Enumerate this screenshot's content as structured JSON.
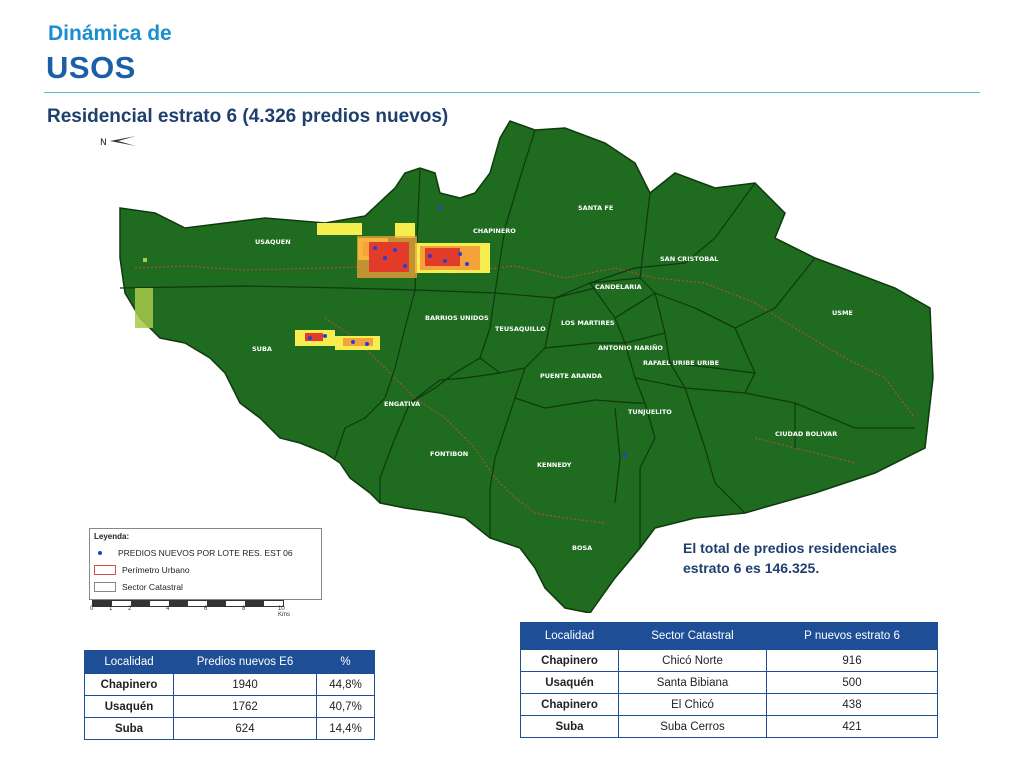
{
  "header": {
    "title_small": "Dinámica de",
    "title_big": "USOS",
    "subtitle": "Residencial estrato 6 (4.326 predios nuevos)"
  },
  "map": {
    "localities": [
      "USAQUEN",
      "CHAPINERO",
      "SANTA FE",
      "SAN CRISTOBAL",
      "CANDELARIA",
      "USME",
      "SUBA",
      "BARRIOS UNIDOS",
      "TEUSAQUILLO",
      "LOS MARTIRES",
      "ANTONIO NARIÑO",
      "RAFAEL URIBE URIBE",
      "PUENTE ARANDA",
      "ENGATIVA",
      "TUNJUELITO",
      "CIUDAD BOLIVAR",
      "FONTIBON",
      "KENNEDY",
      "BOSA"
    ],
    "north_label": "N"
  },
  "legend": {
    "title": "Leyenda:",
    "items": [
      "PREDIOS NUEVOS POR LOTE RES. EST 06",
      "Perímetro Urbano",
      "Sector Catastral"
    ],
    "scale_ticks": [
      "0",
      "1",
      "2",
      "4",
      "6",
      "8",
      "10"
    ],
    "scale_unit": "Kms"
  },
  "note": "El total de predios residenciales estrato 6 es 146.325.",
  "table_localidad": {
    "headers": [
      "Localidad",
      "Predios nuevos E6",
      "%"
    ],
    "rows": [
      [
        "Chapinero",
        "1940",
        "44,8%"
      ],
      [
        "Usaquén",
        "1762",
        "40,7%"
      ],
      [
        "Suba",
        "624",
        "14,4%"
      ]
    ]
  },
  "table_sector": {
    "headers": [
      "Localidad",
      "Sector Catastral",
      "P nuevos estrato 6"
    ],
    "rows": [
      [
        "Chapinero",
        "Chicó Norte",
        "916"
      ],
      [
        "Usaquén",
        "Santa Bibiana",
        "500"
      ],
      [
        "Chapinero",
        "El Chicó",
        "438"
      ],
      [
        "Suba",
        "Suba Cerros",
        "421"
      ]
    ]
  },
  "colors": {
    "map_green": "#1f6b1f",
    "boundary": "#0e3a0e",
    "perimeter": "#c84a3a",
    "hotspot_red": "#e23b2a",
    "hotspot_orange": "#f4a23a",
    "hotspot_yellow": "#f6ee50",
    "point_blue": "#2540d0",
    "table_header": "#1d4e96"
  }
}
